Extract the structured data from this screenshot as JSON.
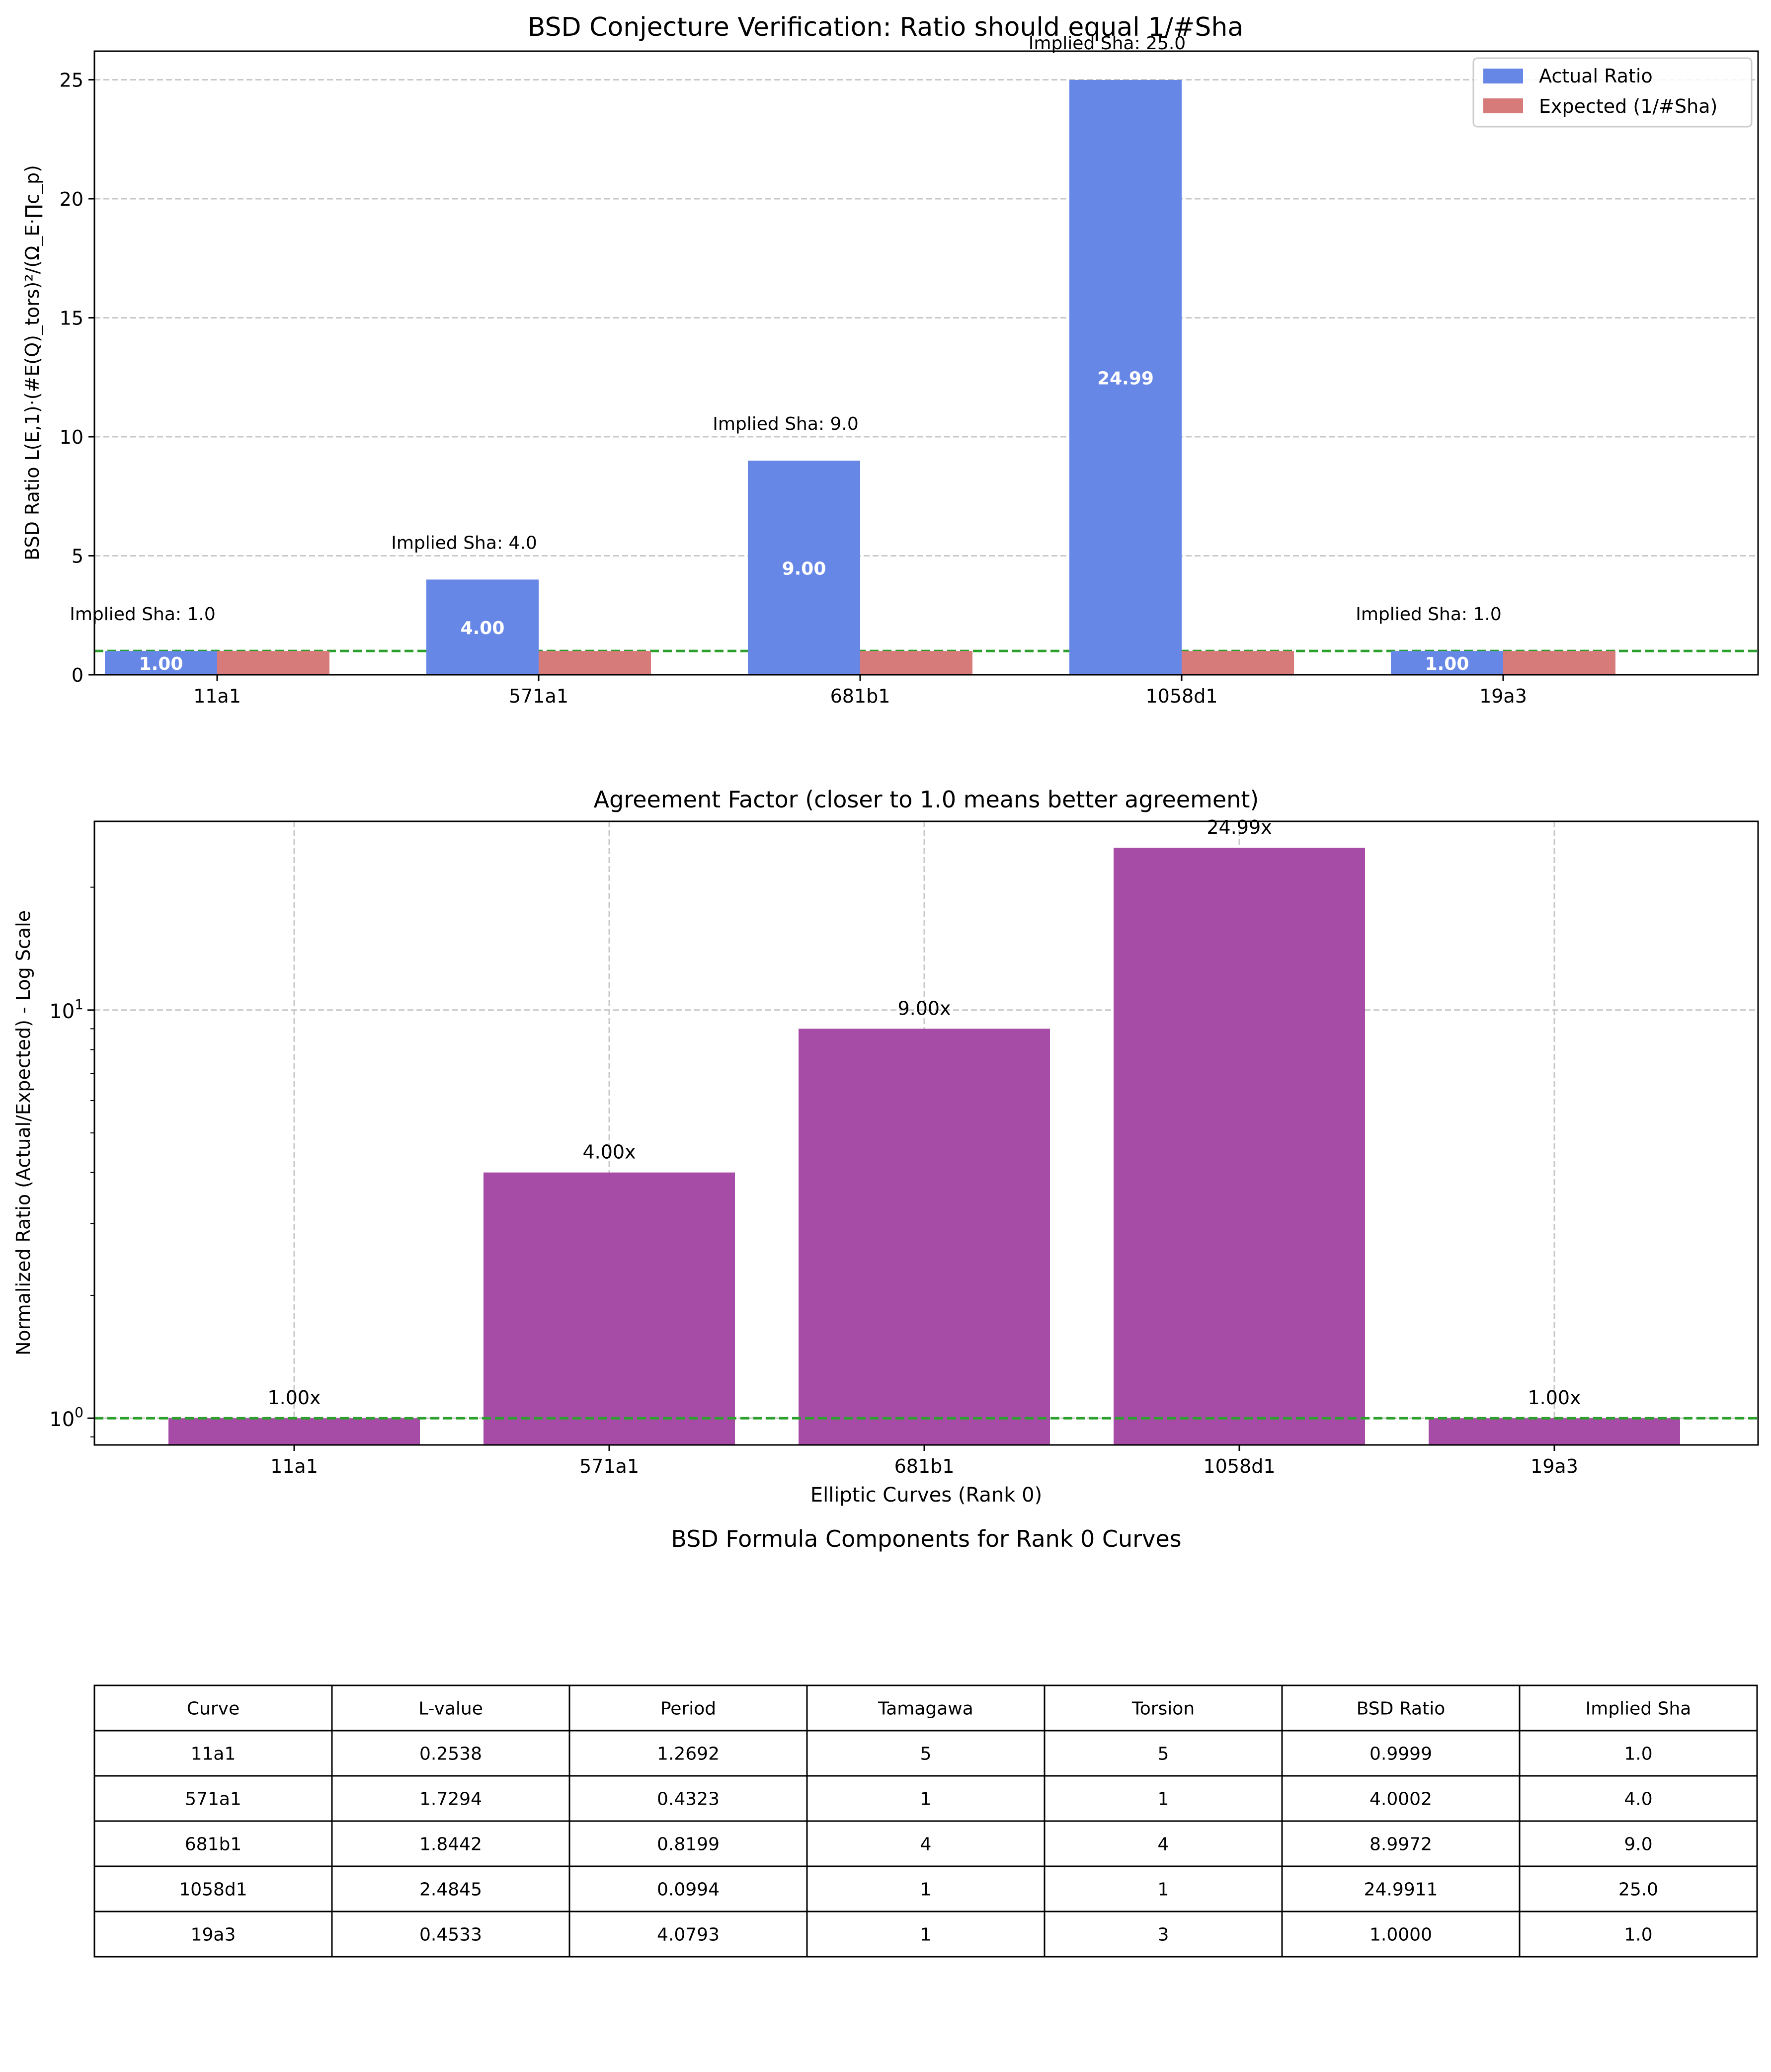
{
  "colors": {
    "actual": "#6787e7",
    "expected": "#d77a7a",
    "factor": "#a64ca6",
    "reference": "#2ca02c",
    "grid": "#c8c8c8"
  },
  "chart_data": [
    {
      "type": "bar",
      "title": "BSD Conjecture Verification: Ratio should equal 1/#Sha",
      "ylabel": "BSD Ratio L(E,1)·(#E(Q)_tors)²/(Ω_E·∏c_p)",
      "xlabel": "",
      "categories": [
        "11a1",
        "571a1",
        "681b1",
        "1058d1",
        "19a3"
      ],
      "series": [
        {
          "name": "Actual Ratio",
          "values": [
            0.9999,
            4.0002,
            8.9972,
            24.9911,
            1.0
          ]
        },
        {
          "name": "Expected (1/#Sha)",
          "values": [
            1,
            1,
            1,
            1,
            1
          ]
        }
      ],
      "bar_labels": [
        "1.00",
        "4.00",
        "9.00",
        "24.99",
        "1.00"
      ],
      "annotations": [
        "Implied Sha: 1.0",
        "Implied Sha: 4.0",
        "Implied Sha: 9.0",
        "Implied Sha: 25.0",
        "Implied Sha: 1.0"
      ],
      "reference_line": 1,
      "ylim": [
        0,
        26.2
      ],
      "yticks": [
        0,
        5,
        10,
        15,
        20,
        25
      ],
      "ytick_labels": [
        "0",
        "5",
        "10",
        "15",
        "20",
        "25"
      ],
      "grid": "y",
      "legend_position": "top-right"
    },
    {
      "type": "bar",
      "title": "Agreement Factor (closer to 1.0 means better agreement)",
      "ylabel": "Normalized Ratio (Actual/Expected) - Log Scale",
      "xlabel": "Elliptic Curves (Rank 0)",
      "yscale": "log",
      "categories": [
        "11a1",
        "571a1",
        "681b1",
        "1058d1",
        "19a3"
      ],
      "values": [
        1.0,
        4.0,
        9.0,
        24.99,
        1.0
      ],
      "bar_labels": [
        "1.00x",
        "4.00x",
        "9.00x",
        "24.99x",
        "1.00x"
      ],
      "reference_line": 1,
      "ylim": [
        0.86,
        29
      ],
      "major_ticks": [
        1,
        10
      ],
      "major_tick_base": "10",
      "major_tick_exponents": [
        "0",
        "1"
      ],
      "grid": "both"
    }
  ],
  "table": {
    "title": "BSD Formula Components for Rank 0 Curves",
    "headers": [
      "Curve",
      "L-value",
      "Period",
      "Tamagawa",
      "Torsion",
      "BSD Ratio",
      "Implied Sha"
    ],
    "rows": [
      [
        "11a1",
        "0.2538",
        "1.2692",
        "5",
        "5",
        "0.9999",
        "1.0"
      ],
      [
        "571a1",
        "1.7294",
        "0.4323",
        "1",
        "1",
        "4.0002",
        "4.0"
      ],
      [
        "681b1",
        "1.8442",
        "0.8199",
        "4",
        "4",
        "8.9972",
        "9.0"
      ],
      [
        "1058d1",
        "2.4845",
        "0.0994",
        "1",
        "1",
        "24.9911",
        "25.0"
      ],
      [
        "19a3",
        "0.4533",
        "4.0793",
        "1",
        "3",
        "1.0000",
        "1.0"
      ]
    ]
  }
}
